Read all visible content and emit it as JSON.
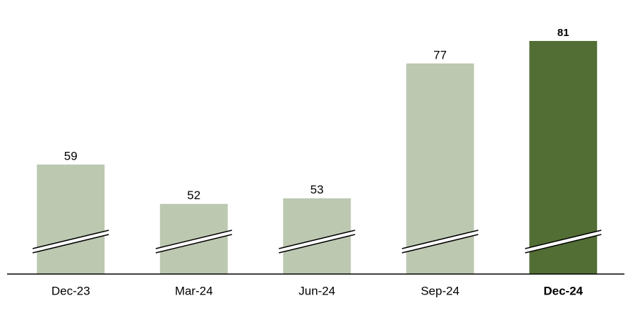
{
  "chart_data": {
    "type": "bar",
    "categories": [
      "Dec-23",
      "Mar-24",
      "Jun-24",
      "Sep-24",
      "Dec-24"
    ],
    "values": [
      59,
      52,
      53,
      77,
      81
    ],
    "colors": [
      "#bcc8b0",
      "#bcc8b0",
      "#bcc8b0",
      "#bcc8b0",
      "#526e34"
    ],
    "highlight_index": 4
  }
}
